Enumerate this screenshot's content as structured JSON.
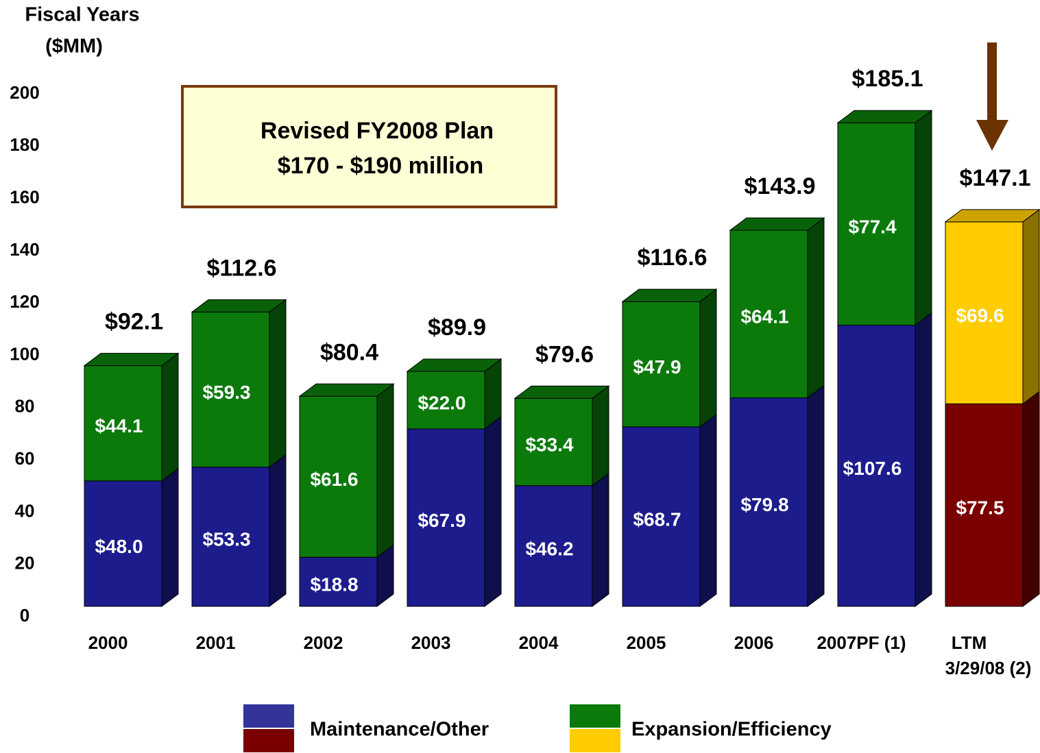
{
  "chart_data": {
    "type": "bar",
    "stacked": true,
    "y_label": [
      "Fiscal Years",
      "($MM)"
    ],
    "annotation": [
      "Revised FY2008 Plan",
      "$170 - $190 million"
    ],
    "categories": [
      "2000",
      "2001",
      "2002",
      "2003",
      "2004",
      "2005",
      "2006",
      "2007PF (1)",
      "LTM\n3/29/08 (2)"
    ],
    "series": [
      {
        "name": "Maintenance/Other",
        "colors": [
          "#1c1c8c",
          "#1c1c8c",
          "#1c1c8c",
          "#1c1c8c",
          "#1c1c8c",
          "#1c1c8c",
          "#1c1c8c",
          "#1c1c8c",
          "#7a0000"
        ],
        "values": [
          48.0,
          53.3,
          18.8,
          67.9,
          46.2,
          68.7,
          79.8,
          107.6,
          77.5
        ],
        "value_labels": [
          "$48.0",
          "$53.3",
          "$18.8",
          "$67.9",
          "$46.2",
          "$68.7",
          "$79.8",
          "$107.6",
          "$77.5"
        ]
      },
      {
        "name": "Expansion/Efficiency",
        "colors": [
          "#0b7a0b",
          "#0b7a0b",
          "#0b7a0b",
          "#0b7a0b",
          "#0b7a0b",
          "#0b7a0b",
          "#0b7a0b",
          "#0b7a0b",
          "#ffcc00"
        ],
        "values": [
          44.1,
          59.3,
          61.6,
          22.0,
          33.4,
          47.9,
          64.1,
          77.4,
          69.6
        ],
        "value_labels": [
          "$44.1",
          "$59.3",
          "$61.6",
          "$22.0",
          "$33.4",
          "$47.9",
          "$64.1",
          "$77.4",
          "$69.6"
        ]
      }
    ],
    "totals": [
      92.1,
      112.6,
      80.4,
      89.9,
      79.6,
      116.6,
      143.9,
      185.1,
      147.1
    ],
    "total_labels": [
      "$92.1",
      "$112.6",
      "$80.4",
      "$89.9",
      "$79.6",
      "$116.6",
      "$143.9",
      "$185.1",
      "$147.1"
    ],
    "ylim": [
      0,
      200
    ],
    "yticks": [
      0,
      20,
      40,
      60,
      80,
      100,
      120,
      140,
      160,
      180,
      200
    ],
    "grid": false
  }
}
